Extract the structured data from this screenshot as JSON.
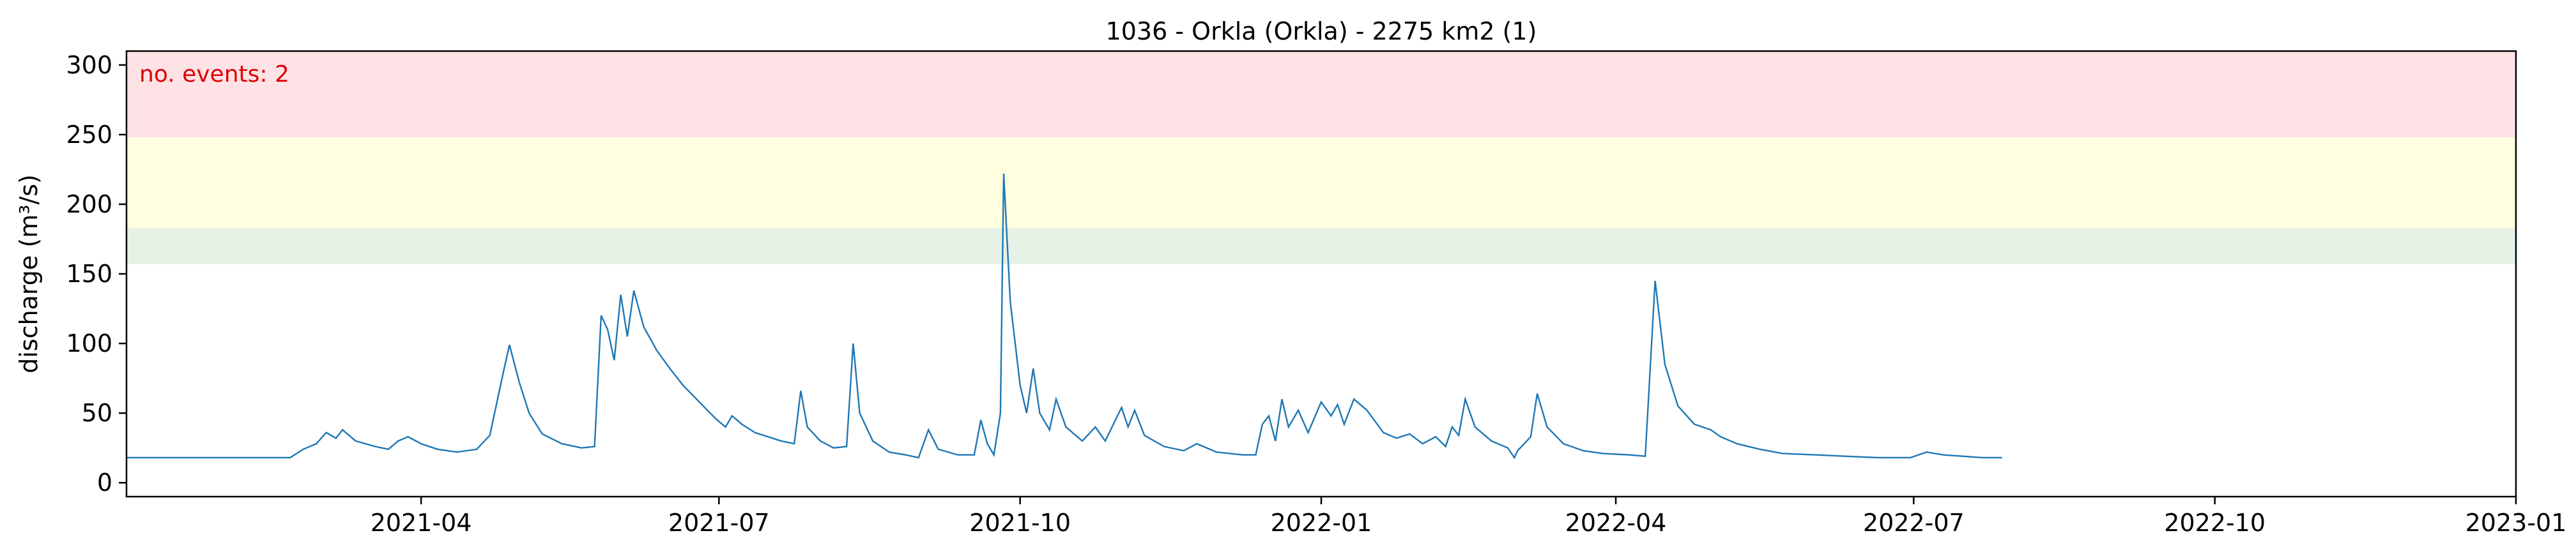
{
  "chart_data": {
    "type": "line",
    "title": "1036 - Orkla (Orkla) - 2275 km2 (1)",
    "xlabel": "",
    "ylabel": "discharge (m³/s)",
    "xlim": [
      "2021-01-01",
      "2023-01-01"
    ],
    "ylim": [
      -10,
      310
    ],
    "x_ticks": [
      "2021-04",
      "2021-07",
      "2021-10",
      "2022-01",
      "2022-04",
      "2022-07",
      "2022-10",
      "2023-01"
    ],
    "y_ticks": [
      0,
      50,
      100,
      150,
      200,
      250,
      300
    ],
    "grid": false,
    "threshold_bands": [
      {
        "from": 157,
        "to": 183,
        "color": "#e6f2e6"
      },
      {
        "from": 183,
        "to": 248,
        "color": "#ffffe0"
      },
      {
        "from": 248,
        "to": 310,
        "color": "#ffe2e5"
      }
    ],
    "annotation": {
      "text": "no. events: 2",
      "color": "#dd0000"
    },
    "series": [
      {
        "color": "#1f77b4",
        "points": [
          [
            "2021-01-01",
            18
          ],
          [
            "2021-02-10",
            18
          ],
          [
            "2021-02-20",
            18
          ],
          [
            "2021-02-24",
            24
          ],
          [
            "2021-02-28",
            28
          ],
          [
            "2021-03-03",
            36
          ],
          [
            "2021-03-06",
            32
          ],
          [
            "2021-03-08",
            38
          ],
          [
            "2021-03-12",
            30
          ],
          [
            "2021-03-18",
            26
          ],
          [
            "2021-03-22",
            24
          ],
          [
            "2021-03-25",
            30
          ],
          [
            "2021-03-28",
            33
          ],
          [
            "2021-04-01",
            28
          ],
          [
            "2021-04-06",
            24
          ],
          [
            "2021-04-12",
            22
          ],
          [
            "2021-04-18",
            24
          ],
          [
            "2021-04-22",
            34
          ],
          [
            "2021-04-26",
            78
          ],
          [
            "2021-04-28",
            99
          ],
          [
            "2021-05-01",
            72
          ],
          [
            "2021-05-04",
            50
          ],
          [
            "2021-05-08",
            35
          ],
          [
            "2021-05-14",
            28
          ],
          [
            "2021-05-20",
            25
          ],
          [
            "2021-05-24",
            26
          ],
          [
            "2021-05-26",
            120
          ],
          [
            "2021-05-28",
            110
          ],
          [
            "2021-05-30",
            88
          ],
          [
            "2021-06-01",
            135
          ],
          [
            "2021-06-03",
            105
          ],
          [
            "2021-06-05",
            138
          ],
          [
            "2021-06-08",
            112
          ],
          [
            "2021-06-12",
            95
          ],
          [
            "2021-06-16",
            82
          ],
          [
            "2021-06-20",
            70
          ],
          [
            "2021-06-25",
            58
          ],
          [
            "2021-06-30",
            46
          ],
          [
            "2021-07-03",
            40
          ],
          [
            "2021-07-05",
            48
          ],
          [
            "2021-07-08",
            42
          ],
          [
            "2021-07-12",
            36
          ],
          [
            "2021-07-16",
            33
          ],
          [
            "2021-07-20",
            30
          ],
          [
            "2021-07-24",
            28
          ],
          [
            "2021-07-26",
            66
          ],
          [
            "2021-07-28",
            40
          ],
          [
            "2021-08-01",
            30
          ],
          [
            "2021-08-05",
            25
          ],
          [
            "2021-08-09",
            26
          ],
          [
            "2021-08-11",
            100
          ],
          [
            "2021-08-13",
            50
          ],
          [
            "2021-08-17",
            30
          ],
          [
            "2021-08-22",
            22
          ],
          [
            "2021-08-27",
            20
          ],
          [
            "2021-08-31",
            18
          ],
          [
            "2021-09-03",
            38
          ],
          [
            "2021-09-06",
            24
          ],
          [
            "2021-09-12",
            20
          ],
          [
            "2021-09-17",
            20
          ],
          [
            "2021-09-19",
            45
          ],
          [
            "2021-09-21",
            28
          ],
          [
            "2021-09-23",
            20
          ],
          [
            "2021-09-25",
            50
          ],
          [
            "2021-09-26",
            222
          ],
          [
            "2021-09-28",
            130
          ],
          [
            "2021-10-01",
            70
          ],
          [
            "2021-10-03",
            50
          ],
          [
            "2021-10-05",
            82
          ],
          [
            "2021-10-07",
            50
          ],
          [
            "2021-10-10",
            38
          ],
          [
            "2021-10-12",
            60
          ],
          [
            "2021-10-15",
            40
          ],
          [
            "2021-10-20",
            30
          ],
          [
            "2021-10-24",
            40
          ],
          [
            "2021-10-27",
            30
          ],
          [
            "2021-11-01",
            54
          ],
          [
            "2021-11-03",
            40
          ],
          [
            "2021-11-05",
            52
          ],
          [
            "2021-11-08",
            34
          ],
          [
            "2021-11-14",
            26
          ],
          [
            "2021-11-20",
            23
          ],
          [
            "2021-11-24",
            28
          ],
          [
            "2021-11-30",
            22
          ],
          [
            "2021-12-08",
            20
          ],
          [
            "2021-12-12",
            20
          ],
          [
            "2021-12-14",
            42
          ],
          [
            "2021-12-16",
            48
          ],
          [
            "2021-12-18",
            30
          ],
          [
            "2021-12-20",
            60
          ],
          [
            "2021-12-22",
            40
          ],
          [
            "2021-12-25",
            52
          ],
          [
            "2021-12-28",
            36
          ],
          [
            "2022-01-01",
            58
          ],
          [
            "2022-01-04",
            48
          ],
          [
            "2022-01-06",
            56
          ],
          [
            "2022-01-08",
            42
          ],
          [
            "2022-01-11",
            60
          ],
          [
            "2022-01-15",
            52
          ],
          [
            "2022-01-20",
            36
          ],
          [
            "2022-01-24",
            32
          ],
          [
            "2022-01-28",
            35
          ],
          [
            "2022-02-01",
            28
          ],
          [
            "2022-02-05",
            33
          ],
          [
            "2022-02-08",
            26
          ],
          [
            "2022-02-10",
            40
          ],
          [
            "2022-02-12",
            34
          ],
          [
            "2022-02-14",
            60
          ],
          [
            "2022-02-17",
            40
          ],
          [
            "2022-02-22",
            30
          ],
          [
            "2022-02-27",
            25
          ],
          [
            "2022-03-02",
            23
          ],
          [
            "2022-03-06",
            33
          ],
          [
            "2022-03-08",
            64
          ],
          [
            "2022-03-11",
            40
          ],
          [
            "2022-03-16",
            28
          ],
          [
            "2022-03-22",
            23
          ],
          [
            "2022-03-28",
            21
          ],
          [
            "2022-04-05",
            20
          ],
          [
            "2022-04-10",
            19
          ],
          [
            "2022-04-13",
            145
          ],
          [
            "2022-04-16",
            85
          ],
          [
            "2022-04-20",
            55
          ],
          [
            "2022-04-25",
            42
          ],
          [
            "2022-04-30",
            38
          ],
          [
            "2022-05-03",
            33
          ],
          [
            "2022-05-08",
            28
          ],
          [
            "2022-05-15",
            24
          ],
          [
            "2022-05-22",
            21
          ],
          [
            "2022-06-01",
            20
          ],
          [
            "2022-06-10",
            19
          ],
          [
            "2022-06-20",
            18
          ],
          [
            "2022-06-30",
            18
          ],
          [
            "2022-07-05",
            22
          ],
          [
            "2022-07-10",
            20
          ],
          [
            "2022-07-16",
            19
          ],
          [
            "2022-07-22",
            18
          ],
          [
            "2022-07-28",
            18
          ],
          [
            "2022-03-01",
            18
          ]
        ]
      }
    ]
  }
}
